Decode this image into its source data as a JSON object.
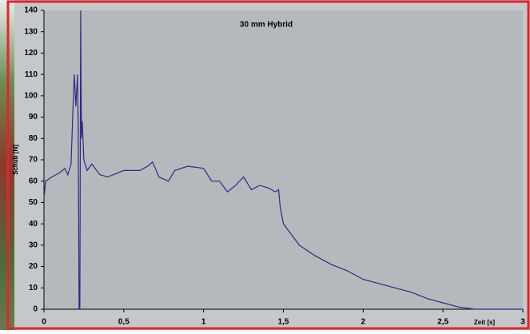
{
  "chart_data": {
    "type": "line",
    "title": "30 mm Hybrid",
    "x_label": "Zeit [s]",
    "y_label": "Schub [N]",
    "xlim": [
      0,
      3
    ],
    "ylim": [
      0,
      140
    ],
    "xticks": [
      0,
      {
        "value": 0.5,
        "label": "0,5"
      },
      1,
      {
        "value": 1.5,
        "label": "1,5"
      },
      2,
      {
        "value": 2.5,
        "label": "2,5"
      },
      3
    ],
    "yticks": [
      0,
      10,
      20,
      30,
      40,
      50,
      60,
      70,
      80,
      90,
      100,
      110,
      120,
      130,
      140
    ],
    "series": [
      {
        "color": "#2b2b86",
        "x": [
          0,
          0.01,
          0.05,
          0.1,
          0.13,
          0.15,
          0.17,
          0.18,
          0.19,
          0.2,
          0.21,
          0.215,
          0.22,
          0.225,
          0.23,
          0.235,
          0.24,
          0.25,
          0.27,
          0.3,
          0.35,
          0.4,
          0.5,
          0.6,
          0.65,
          0.68,
          0.72,
          0.78,
          0.82,
          0.9,
          1.0,
          1.05,
          1.1,
          1.15,
          1.2,
          1.25,
          1.3,
          1.35,
          1.4,
          1.45,
          1.47,
          1.48,
          1.5,
          1.55,
          1.6,
          1.7,
          1.8,
          1.9,
          2.0,
          2.1,
          2.2,
          2.3,
          2.4,
          2.5,
          2.6,
          2.7,
          3
        ],
        "values": [
          52,
          60,
          62,
          64,
          66,
          63,
          68,
          90,
          110,
          95,
          110,
          85,
          0,
          0,
          140,
          80,
          88,
          70,
          65,
          68,
          63,
          62,
          65,
          65,
          67,
          69,
          62,
          60,
          65,
          67,
          66,
          60,
          60,
          55,
          58,
          62,
          56,
          58,
          57,
          55,
          56,
          48,
          40,
          35,
          30,
          25,
          21,
          18,
          14,
          12,
          10,
          8,
          5,
          3,
          1,
          0,
          0
        ]
      }
    ]
  }
}
